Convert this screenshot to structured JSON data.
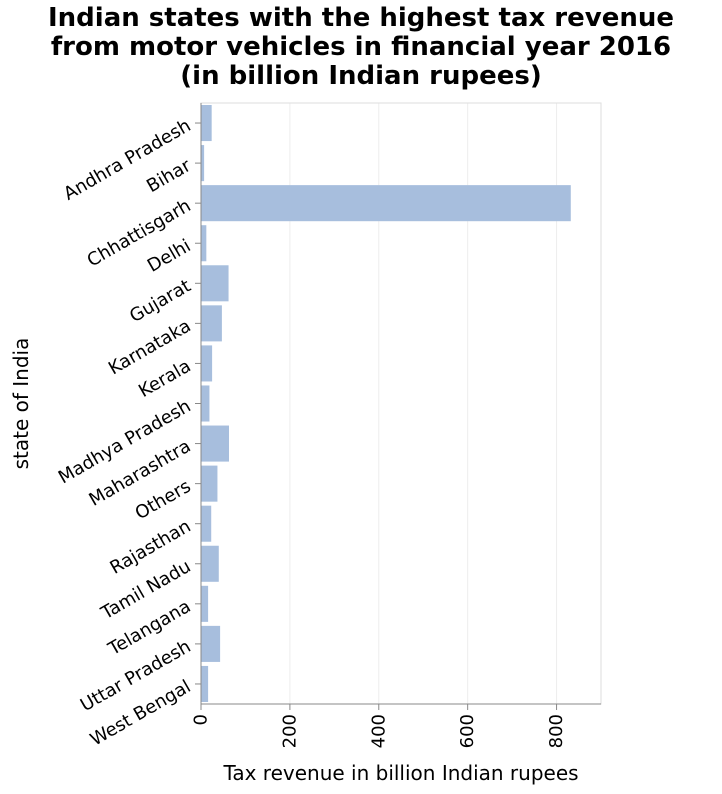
{
  "chart_data": {
    "type": "bar",
    "orientation": "horizontal",
    "title": [
      "Indian states with the highest tax revenue",
      "from motor vehicles in financial year 2016",
      "(in billion Indian rupees)"
    ],
    "xlabel": "Tax revenue in billion Indian rupees",
    "ylabel": "state of India",
    "xlim": [
      0,
      900
    ],
    "xticks": [
      0,
      200,
      400,
      600,
      800
    ],
    "xtick_labels": [
      "0",
      "200",
      "400",
      "600",
      "800"
    ],
    "grid": true,
    "bar_color": "#a7bedd",
    "categories": [
      "Andhra Pradesh",
      "Bihar",
      "Chhattisgarh",
      "Delhi",
      "Gujarat",
      "Karnataka",
      "Kerala",
      "Madhya Pradesh",
      "Maharashtra",
      "Others",
      "Rajasthan",
      "Tamil Nadu",
      "Telangana",
      "Uttar Pradesh",
      "West Bengal"
    ],
    "values": [
      24,
      7,
      832,
      12,
      62,
      47,
      25,
      19,
      63,
      37,
      23,
      40,
      16,
      43,
      16
    ]
  }
}
